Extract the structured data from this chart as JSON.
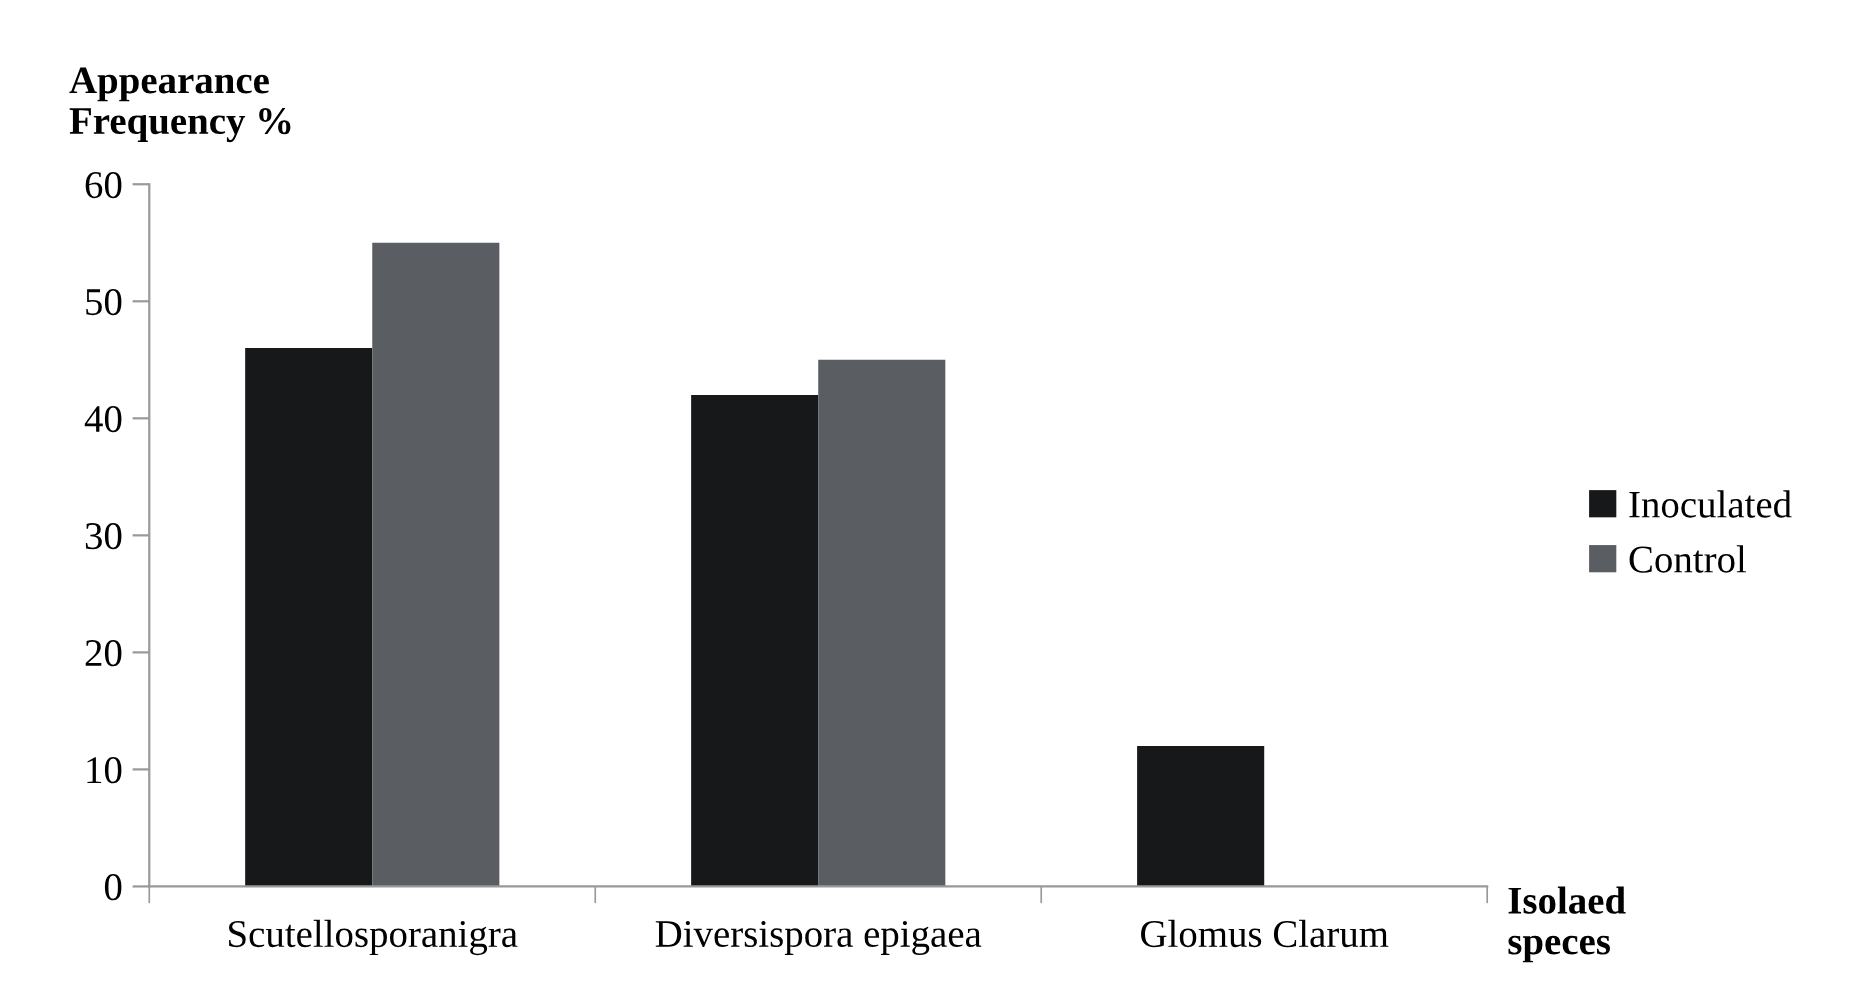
{
  "chart_data": {
    "type": "bar",
    "ylabel": "Appearance\nFrequency %",
    "xlabel": "Isolaed\nspeces",
    "categories": [
      "Scutellosporanigra",
      "Diversispora epigaea",
      "Glomus Clarum"
    ],
    "series": [
      {
        "name": "Inoculated",
        "color": "#161819",
        "values": [
          46,
          42,
          12
        ]
      },
      {
        "name": "Control",
        "color": "#5a5e62",
        "values": [
          55,
          45,
          0
        ]
      }
    ],
    "ylim": [
      0,
      60
    ],
    "yticks": [
      0,
      10,
      20,
      30,
      40,
      50,
      60
    ],
    "grid": false,
    "legend": "right"
  }
}
